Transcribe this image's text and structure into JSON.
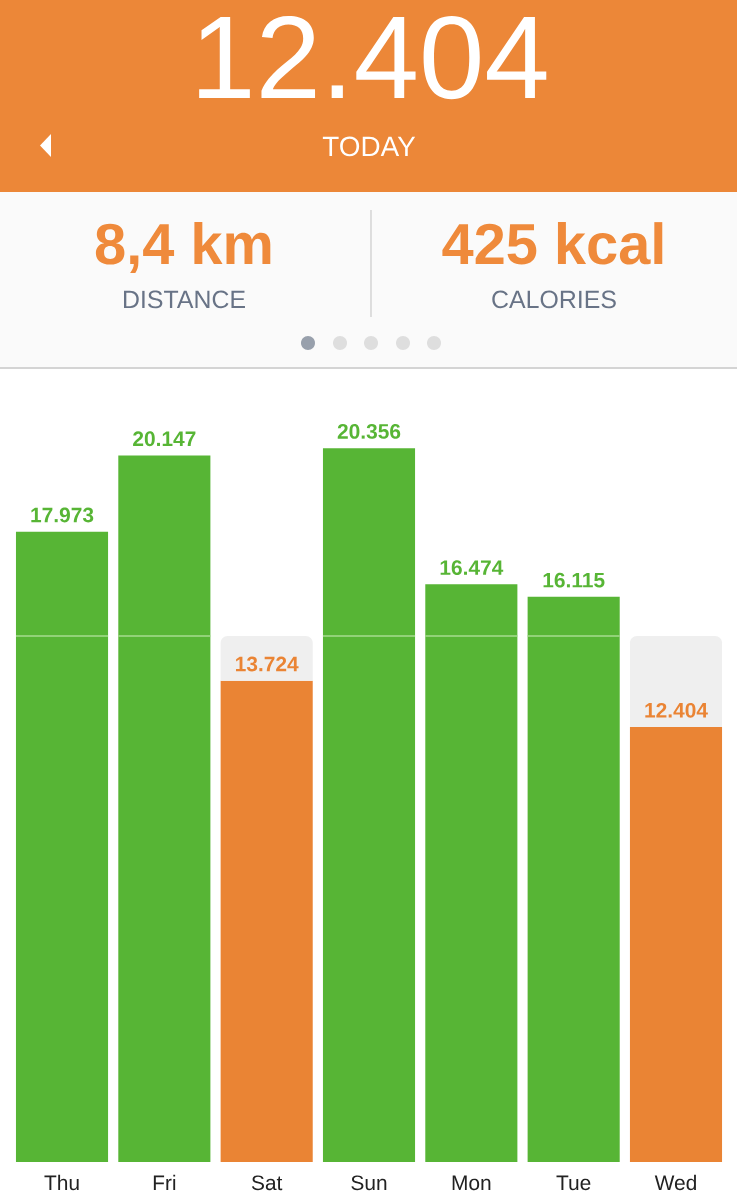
{
  "chart_data": {
    "type": "bar",
    "title": "12.404",
    "subtitle": "TODAY",
    "annotations": [
      "8,4 km",
      "DISTANCE",
      "425 kcal",
      "CALORIES"
    ],
    "categories": [
      "Thu",
      "Fri",
      "Sat",
      "Sun",
      "Mon",
      "Tue",
      "Wed"
    ],
    "stacked": true,
    "series": [
      {
        "values": [
          17973,
          20147,
          13724,
          20356,
          16474,
          16115,
          12404
        ],
        "colors": [
          "#57b535",
          "#57b535",
          "#ea8434",
          "#57b535",
          "#57b535",
          "#57b535",
          "#ea8434"
        ],
        "value_labels": [
          "17.973",
          "20.147",
          "13.724",
          "20.356",
          "16.474",
          "16.115",
          "12.404"
        ]
      },
      {
        "values": [
          null,
          null,
          1276,
          null,
          null,
          null,
          2596
        ],
        "color": "#efefef"
      }
    ],
    "tick_labels": "x",
    "ref_lines": [
      {
        "axis": "y",
        "value": 15000,
        "color": "#a6dc8f"
      }
    ]
  }
}
